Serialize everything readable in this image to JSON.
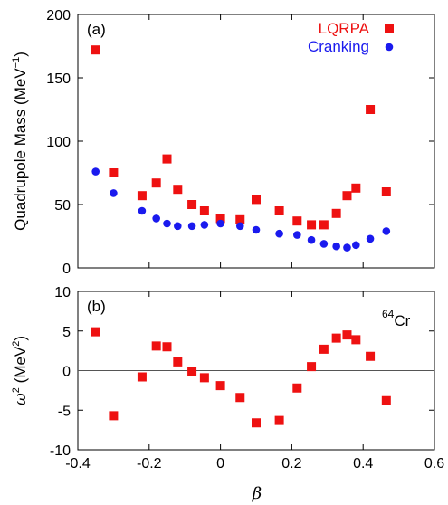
{
  "chart_data": [
    {
      "type": "scatter",
      "panel_label": "(a)",
      "ylabel": "Quadrupole Mass (MeV",
      "ylabel_sup": "−1",
      "ylabel_close": ")",
      "xlim": [
        -0.4,
        0.6
      ],
      "ylim": [
        0,
        200
      ],
      "yticks": [
        0,
        50,
        100,
        150,
        200
      ],
      "legend_position": "top-right",
      "series": [
        {
          "name": "LQRPA",
          "marker": "square",
          "color": "#ee1111",
          "x": [
            -0.35,
            -0.3,
            -0.22,
            -0.18,
            -0.15,
            -0.12,
            -0.08,
            -0.045,
            0.0,
            0.055,
            0.1,
            0.165,
            0.215,
            0.255,
            0.29,
            0.325,
            0.355,
            0.38,
            0.42,
            0.465
          ],
          "y": [
            172,
            75,
            57,
            67,
            86,
            62,
            50,
            45,
            39,
            38,
            54,
            45,
            37,
            34,
            34,
            43,
            57,
            63,
            125,
            60
          ]
        },
        {
          "name": "Cranking",
          "marker": "circle",
          "color": "#1a1aee",
          "x": [
            -0.35,
            -0.3,
            -0.22,
            -0.18,
            -0.15,
            -0.12,
            -0.08,
            -0.045,
            0.0,
            0.055,
            0.1,
            0.165,
            0.215,
            0.255,
            0.29,
            0.325,
            0.355,
            0.38,
            0.42,
            0.465
          ],
          "y": [
            76,
            59,
            45,
            39,
            35,
            33,
            33,
            34,
            35,
            33,
            30,
            27,
            26,
            22,
            19,
            17,
            16,
            18,
            23,
            29
          ]
        }
      ]
    },
    {
      "type": "scatter",
      "panel_label": "(b)",
      "annotation": {
        "mass": "64",
        "element": "Cr"
      },
      "ylabel": "ω",
      "ylabel_sup": "2",
      "ylabel_rest": " (MeV",
      "ylabel_sup2": "2",
      "ylabel_close": ")",
      "xlabel": "β",
      "xlim": [
        -0.4,
        0.6
      ],
      "ylim": [
        -10,
        10
      ],
      "xticks": [
        "-0.4",
        "-0.2",
        "0",
        "0.2",
        "0.4",
        "0.6"
      ],
      "yticks": [
        "-10",
        "-5",
        "0",
        "5",
        "10"
      ],
      "zero_line": true,
      "series": [
        {
          "marker": "square",
          "color": "#ee1111",
          "x": [
            -0.35,
            -0.3,
            -0.22,
            -0.18,
            -0.15,
            -0.12,
            -0.08,
            -0.045,
            0.0,
            0.055,
            0.1,
            0.165,
            0.215,
            0.255,
            0.29,
            0.325,
            0.355,
            0.38,
            0.42,
            0.465
          ],
          "y": [
            4.9,
            -5.7,
            -0.8,
            3.1,
            3.0,
            1.1,
            -0.1,
            -0.9,
            -1.9,
            -3.4,
            -6.6,
            -6.3,
            -2.2,
            0.5,
            2.7,
            4.1,
            4.5,
            3.9,
            1.8,
            -3.8
          ]
        }
      ]
    }
  ]
}
